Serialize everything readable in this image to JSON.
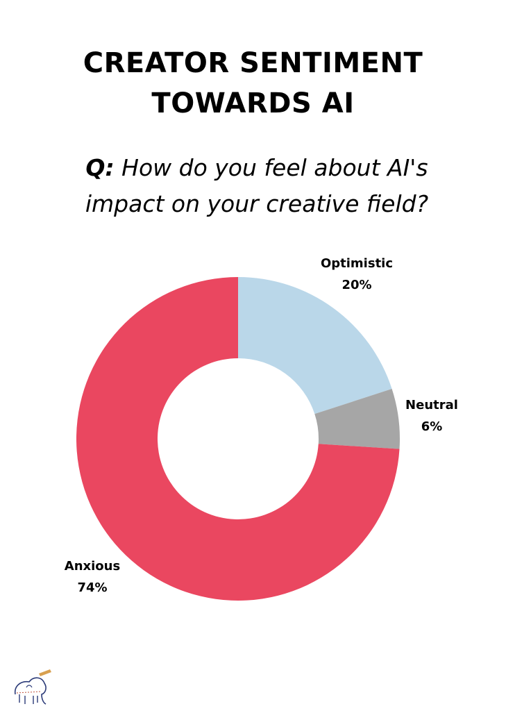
{
  "title": {
    "line1": "CREATOR SENTIMENT",
    "line2": "TOWARDS AI"
  },
  "question": {
    "prefix": "Q:",
    "line1": "How do you feel about AI's",
    "line2": "impact on your creative field?"
  },
  "chart_data": {
    "type": "pie",
    "style": "donut",
    "categories": [
      "Optimistic",
      "Neutral",
      "Anxious"
    ],
    "values": [
      20,
      6,
      74
    ],
    "value_labels": [
      "20%",
      "6%",
      "74%"
    ],
    "colors": [
      "#bad7e9",
      "#a6a6a6",
      "#ea4760"
    ],
    "title": "CREATOR SENTIMENT TOWARDS AI"
  },
  "logo": {
    "icon": "elephant-logo-icon"
  }
}
